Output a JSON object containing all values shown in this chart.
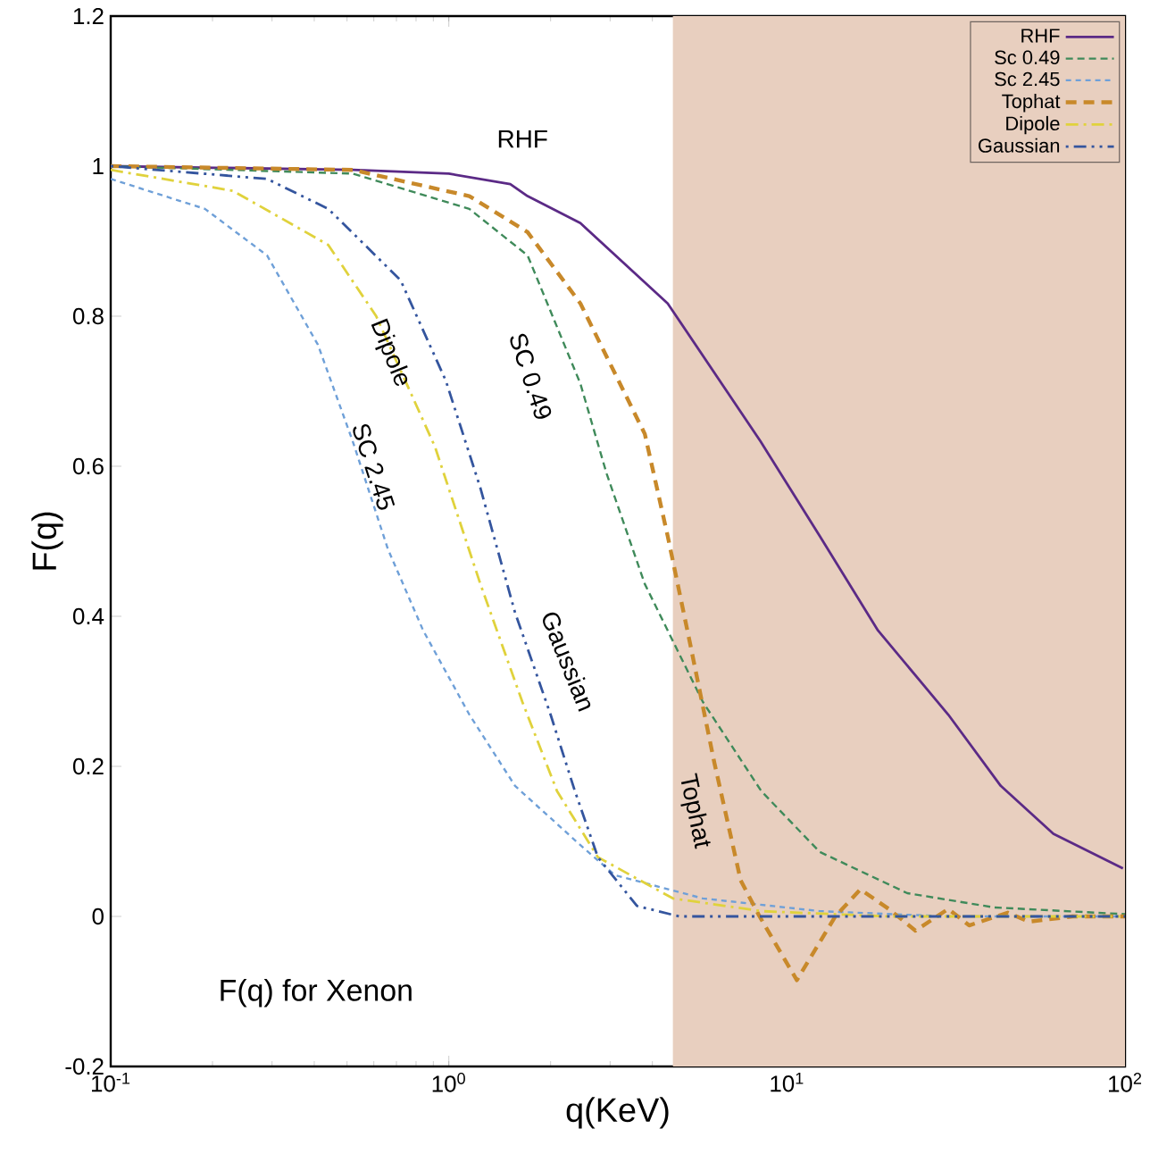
{
  "chart_data": {
    "type": "line",
    "xlabel": "q(KeV)",
    "ylabel": "F(q)",
    "log": "x",
    "xlim": [
      0.1,
      100
    ],
    "ylim": [
      -0.2,
      1.2
    ],
    "xticks": [
      {
        "value": 0.1,
        "label": "10$^{-1}$"
      },
      {
        "value": 1,
        "label": "10$^{0}$"
      },
      {
        "value": 10,
        "label": "10$^{1}$"
      },
      {
        "value": 100,
        "label": "10$^{2}$"
      }
    ],
    "yticks": [
      -0.2,
      0,
      0.2,
      0.4,
      0.6,
      0.8,
      1,
      1.2
    ],
    "legend": "top right",
    "grid": false,
    "bands": [
      {
        "axis": "x",
        "from": 4.6,
        "to": 100,
        "color": "#e8cfbf"
      }
    ],
    "series": [
      {
        "name": "RHF",
        "color": "#5b2a86",
        "line_style": "solid",
        "x": [
          0.1,
          0.52,
          1,
          1.52,
          1.71,
          2.45,
          4.44,
          8.36,
          12.5,
          18.6,
          30,
          42.9,
          61.4,
          98.6
        ],
        "values": [
          1.0,
          0.995,
          0.99,
          0.976,
          0.96,
          0.924,
          0.817,
          0.633,
          0.507,
          0.381,
          0.269,
          0.174,
          0.11,
          0.064
        ]
      },
      {
        "name": "Sc 0.49",
        "color": "#3f8a5a",
        "line_style": "dashed",
        "x": [
          0.1,
          0.52,
          1.15,
          1.71,
          2.45,
          2.93,
          3.8,
          5.64,
          8.4,
          12.5,
          22.7,
          41,
          100
        ],
        "values": [
          1.0,
          0.99,
          0.943,
          0.881,
          0.71,
          0.59,
          0.443,
          0.286,
          0.167,
          0.086,
          0.031,
          0.012,
          0.003
        ]
      },
      {
        "name": "Sc 2.45",
        "color": "#6fa0d8",
        "line_style": "dashed",
        "x": [
          0.1,
          0.19,
          0.29,
          0.41,
          0.52,
          0.66,
          0.84,
          1.15,
          1.57,
          2.45,
          3.1,
          5.64,
          12.5,
          30,
          100
        ],
        "values": [
          0.983,
          0.943,
          0.881,
          0.762,
          0.633,
          0.49,
          0.381,
          0.269,
          0.174,
          0.095,
          0.055,
          0.024,
          0.007,
          0.0,
          0.0
        ]
      },
      {
        "name": "Tophat",
        "color": "#c8892a",
        "line_style": "dashed",
        "x": [
          0.1,
          0.52,
          1.15,
          1.71,
          2.45,
          3.8,
          4.44,
          5.17,
          6.1,
          7.3,
          8.3,
          10.7,
          13.9,
          16.5,
          20,
          24,
          30,
          34.6,
          45,
          52,
          70,
          100
        ],
        "values": [
          1.0,
          0.995,
          0.96,
          0.912,
          0.817,
          0.643,
          0.507,
          0.364,
          0.205,
          0.048,
          0.0,
          -0.085,
          0.0,
          0.036,
          0.01,
          -0.019,
          0.01,
          -0.012,
          0.005,
          -0.007,
          0.0,
          0.0
        ]
      },
      {
        "name": "Dipole",
        "color": "#e0d23c",
        "line_style": "dashed",
        "x": [
          0.1,
          0.23,
          0.44,
          0.61,
          0.91,
          1.24,
          1.65,
          2.09,
          2.76,
          4.6,
          8.4,
          20,
          100
        ],
        "values": [
          0.995,
          0.967,
          0.895,
          0.8,
          0.626,
          0.443,
          0.286,
          0.167,
          0.079,
          0.024,
          0.007,
          0.0,
          0.0
        ]
      },
      {
        "name": "Gaussian",
        "color": "#34559e",
        "line_style": "dashed",
        "x": [
          0.1,
          0.29,
          0.44,
          0.72,
          0.98,
          1.24,
          1.57,
          2.0,
          2.36,
          2.76,
          3.6,
          4.8,
          10,
          100
        ],
        "values": [
          1.0,
          0.983,
          0.943,
          0.848,
          0.714,
          0.571,
          0.405,
          0.269,
          0.167,
          0.079,
          0.014,
          0.0,
          0.0,
          0.0
        ]
      }
    ],
    "annotations": [
      "RHF",
      "SC 0.49",
      "Dipole",
      "SC 2.45",
      "Gaussian",
      "Tophat",
      "F(q) for Xenon"
    ]
  }
}
